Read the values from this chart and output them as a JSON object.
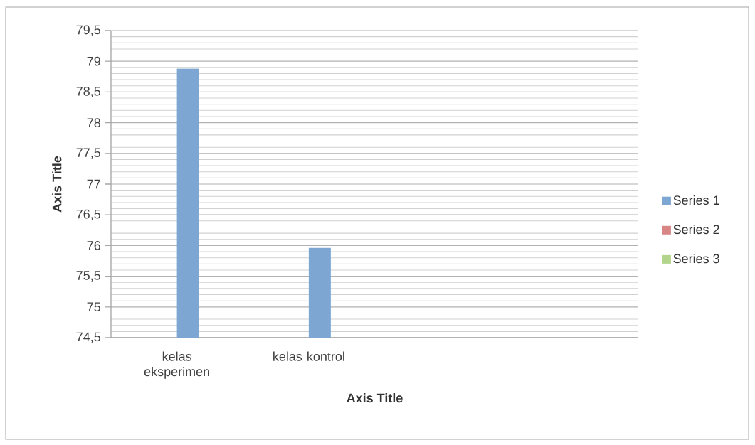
{
  "chart_data": {
    "type": "bar",
    "categories": [
      "kelas eksperimen",
      "kelas kontrol",
      null,
      null
    ],
    "series": [
      {
        "name": "Series 1",
        "color": "#7ea6d3",
        "values": [
          78.88,
          75.96,
          null,
          null
        ]
      },
      {
        "name": "Series 2",
        "color": "#d88585",
        "values": [
          null,
          null,
          null,
          null
        ]
      },
      {
        "name": "Series 3",
        "color": "#b3d58b",
        "values": [
          null,
          null,
          null,
          null
        ]
      }
    ],
    "xlabel": "Axis Title",
    "ylabel": "Axis Title",
    "ylim": [
      74.5,
      79.5
    ],
    "yticks": [
      {
        "value": 74.5,
        "label": "74,5"
      },
      75,
      {
        "value": 75.5,
        "label": "75,5"
      },
      76,
      {
        "value": 76.5,
        "label": "76,5"
      },
      77,
      {
        "value": 77.5,
        "label": "77,5"
      },
      78,
      {
        "value": 78.5,
        "label": "78,5"
      },
      79,
      {
        "value": 79.5,
        "label": "79,5"
      }
    ],
    "grid": "y",
    "legend": "right"
  }
}
